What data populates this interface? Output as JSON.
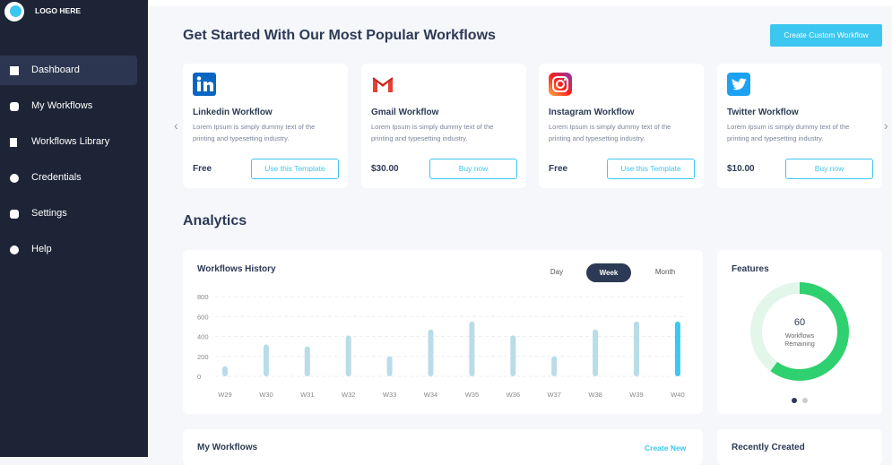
{
  "sidebar": {
    "logo": "LOGO HERE",
    "nav": [
      "Dashboard",
      "My Workflows",
      "Workflows Library",
      "Credentials",
      "Settings",
      "Help"
    ]
  },
  "workflows": {
    "title": "Get Started With Our Most Popular Workflows",
    "create_button": "Create Custom Workflow",
    "cards": [
      {
        "title": "Linkedin Workflow",
        "description": "Lorem Ipsum is simply dummy text of the printing and typesetting industry.",
        "price": "Free",
        "button": "Use this Template"
      },
      {
        "title": "Gmail Workflow",
        "description": "Lorem Ipsum is simply dummy text of the printing and typesetting industry.",
        "price": "$30.00",
        "button": "Buy now"
      },
      {
        "title": "Instagram Workflow",
        "description": "Lorem Ipsum is simply dummy text of the printing and typesetting industry.",
        "price": "Free",
        "button": "Use this Template"
      },
      {
        "title": "Twitter Workflow",
        "description": "Lorem Ipsum is simply dummy text of the printing and typesetting industry.",
        "price": "$10.00",
        "button": "Buy now"
      }
    ]
  },
  "analytics": {
    "title": "Analytics",
    "history": {
      "title": "Workflows History",
      "periods": [
        "Day",
        "Week",
        "Month"
      ],
      "categories": [
        "W29",
        "W30",
        "W31",
        "W32",
        "W33",
        "W34",
        "W35",
        "W36",
        "W37",
        "W38",
        "W39",
        "W40"
      ],
      "values": [
        100,
        320,
        300,
        410,
        200,
        470,
        550,
        410,
        200,
        470,
        550,
        550
      ],
      "ylim": [
        0,
        800
      ],
      "yticks": [
        0,
        200,
        400,
        600,
        800
      ]
    },
    "features": {
      "title": "Features",
      "value": 60,
      "label": "Workflows",
      "sublabel": "Remaining"
    }
  },
  "my_workflows": {
    "title": "My Workflows",
    "action": "Create New"
  },
  "recently_created": {
    "title": "Recently Created"
  }
}
